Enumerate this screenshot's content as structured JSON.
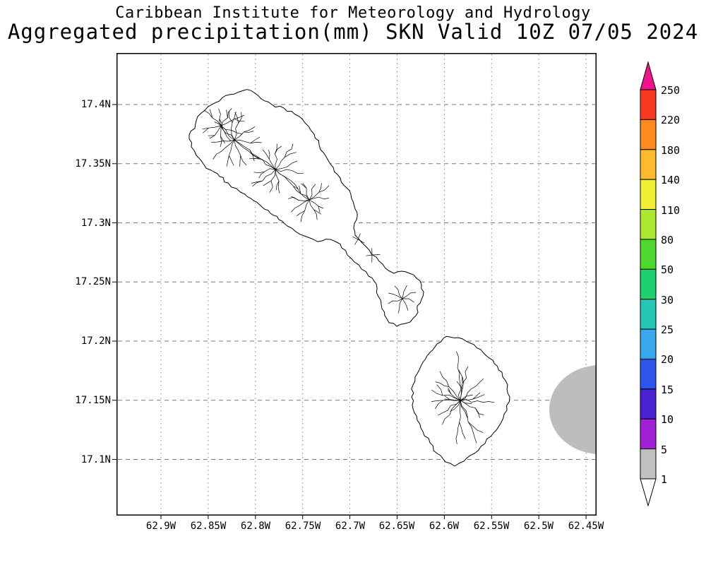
{
  "header": {
    "line1": "Caribbean Institute for Meteorology and Hydrology",
    "line2": "Aggregated precipitation(mm) SKN Valid 10Z 07/05 2024"
  },
  "axes": {
    "lat_ticks": [
      "17.4N",
      "17.35N",
      "17.3N",
      "17.25N",
      "17.2N",
      "17.15N",
      "17.1N"
    ],
    "lon_ticks": [
      "62.9W",
      "62.85W",
      "62.8W",
      "62.75W",
      "62.7W",
      "62.65W",
      "62.6W",
      "62.55W",
      "62.5W",
      "62.45W"
    ]
  },
  "colorbar": {
    "labels": [
      "250",
      "220",
      "180",
      "140",
      "110",
      "80",
      "50",
      "30",
      "25",
      "20",
      "15",
      "10",
      "5",
      "1"
    ],
    "arrow_top_color": "#f0148c",
    "arrow_bottom_color": "#ffffff",
    "segment_colors": [
      "#f93822",
      "#fb8b1e",
      "#fcbb2d",
      "#f0ee33",
      "#abe82f",
      "#4cd82c",
      "#1fd06e",
      "#25c6b4",
      "#38a8ee",
      "#2b55ec",
      "#4a22d4",
      "#a21fd6",
      "#c0c0c0"
    ]
  },
  "map": {
    "offshore_shade_color": "#bdbdbd",
    "line_color": "#000000",
    "grid_color": "#7a7a7a"
  }
}
